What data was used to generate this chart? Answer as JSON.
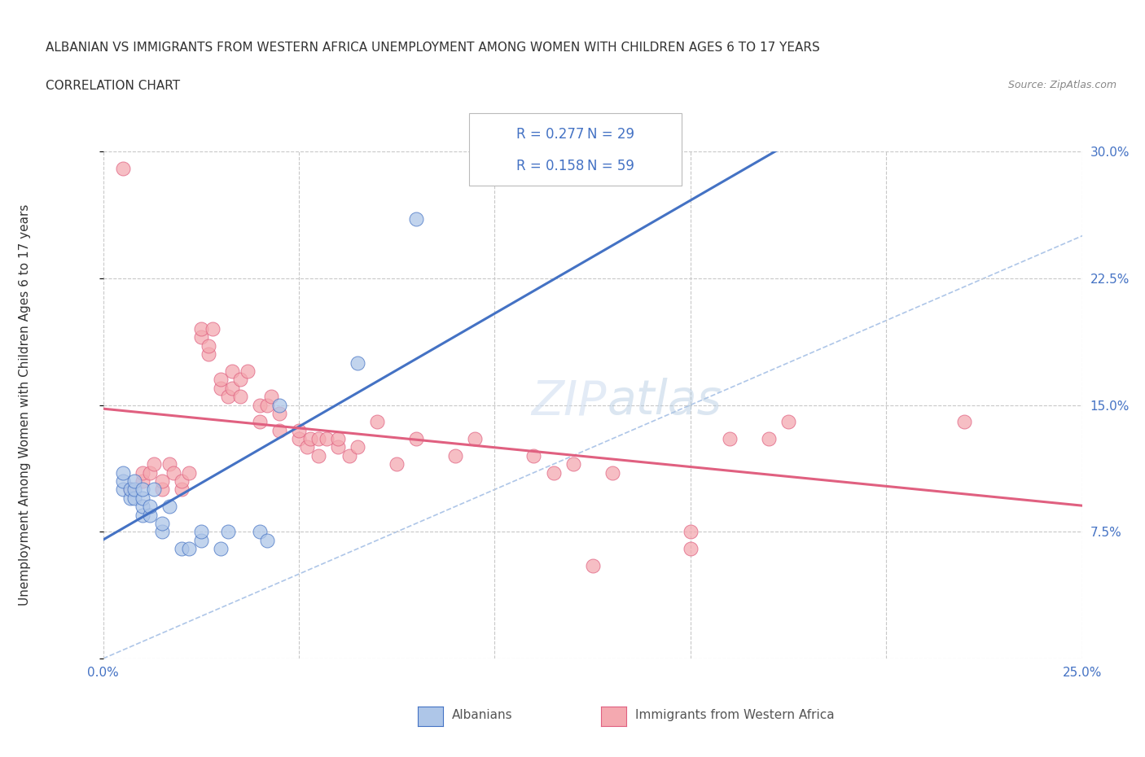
{
  "title_line1": "ALBANIAN VS IMMIGRANTS FROM WESTERN AFRICA UNEMPLOYMENT AMONG WOMEN WITH CHILDREN AGES 6 TO 17 YEARS",
  "title_line2": "CORRELATION CHART",
  "source_text": "Source: ZipAtlas.com",
  "ylabel": "Unemployment Among Women with Children Ages 6 to 17 years",
  "xlim": [
    0.0,
    0.25
  ],
  "ylim": [
    0.0,
    0.3
  ],
  "xticks": [
    0.0,
    0.05,
    0.1,
    0.15,
    0.2,
    0.25
  ],
  "xtick_labels": [
    "0.0%",
    "",
    "",
    "",
    "",
    "25.0%"
  ],
  "ytick_labels_right": [
    "",
    "7.5%",
    "15.0%",
    "22.5%",
    "30.0%"
  ],
  "yticks_right": [
    0.0,
    0.075,
    0.15,
    0.225,
    0.3
  ],
  "grid_color": "#c8c8c8",
  "background_color": "#ffffff",
  "albanians_color": "#aec6e8",
  "immigrants_color": "#f4a9b0",
  "albanians_line_color": "#4472c4",
  "immigrants_line_color": "#e06080",
  "diagonal_color": "#aec6e8",
  "albanians_x": [
    0.005,
    0.005,
    0.005,
    0.007,
    0.007,
    0.008,
    0.008,
    0.008,
    0.01,
    0.01,
    0.01,
    0.01,
    0.012,
    0.012,
    0.013,
    0.015,
    0.015,
    0.017,
    0.02,
    0.022,
    0.025,
    0.025,
    0.03,
    0.032,
    0.04,
    0.042,
    0.045,
    0.065,
    0.08
  ],
  "albanians_y": [
    0.1,
    0.105,
    0.11,
    0.095,
    0.1,
    0.095,
    0.1,
    0.105,
    0.085,
    0.09,
    0.095,
    0.1,
    0.085,
    0.09,
    0.1,
    0.075,
    0.08,
    0.09,
    0.065,
    0.065,
    0.07,
    0.075,
    0.065,
    0.075,
    0.075,
    0.07,
    0.15,
    0.175,
    0.26
  ],
  "immigrants_x": [
    0.005,
    0.007,
    0.01,
    0.01,
    0.012,
    0.013,
    0.015,
    0.015,
    0.017,
    0.018,
    0.02,
    0.02,
    0.022,
    0.025,
    0.025,
    0.027,
    0.027,
    0.028,
    0.03,
    0.03,
    0.032,
    0.033,
    0.033,
    0.035,
    0.035,
    0.037,
    0.04,
    0.04,
    0.042,
    0.043,
    0.045,
    0.045,
    0.05,
    0.05,
    0.052,
    0.053,
    0.055,
    0.055,
    0.057,
    0.06,
    0.06,
    0.063,
    0.065,
    0.07,
    0.075,
    0.08,
    0.09,
    0.095,
    0.11,
    0.115,
    0.12,
    0.125,
    0.13,
    0.15,
    0.15,
    0.16,
    0.17,
    0.175,
    0.22
  ],
  "immigrants_y": [
    0.29,
    0.1,
    0.105,
    0.11,
    0.11,
    0.115,
    0.1,
    0.105,
    0.115,
    0.11,
    0.1,
    0.105,
    0.11,
    0.19,
    0.195,
    0.18,
    0.185,
    0.195,
    0.16,
    0.165,
    0.155,
    0.16,
    0.17,
    0.155,
    0.165,
    0.17,
    0.14,
    0.15,
    0.15,
    0.155,
    0.135,
    0.145,
    0.13,
    0.135,
    0.125,
    0.13,
    0.12,
    0.13,
    0.13,
    0.125,
    0.13,
    0.12,
    0.125,
    0.14,
    0.115,
    0.13,
    0.12,
    0.13,
    0.12,
    0.11,
    0.115,
    0.055,
    0.11,
    0.065,
    0.075,
    0.13,
    0.13,
    0.14,
    0.14
  ]
}
